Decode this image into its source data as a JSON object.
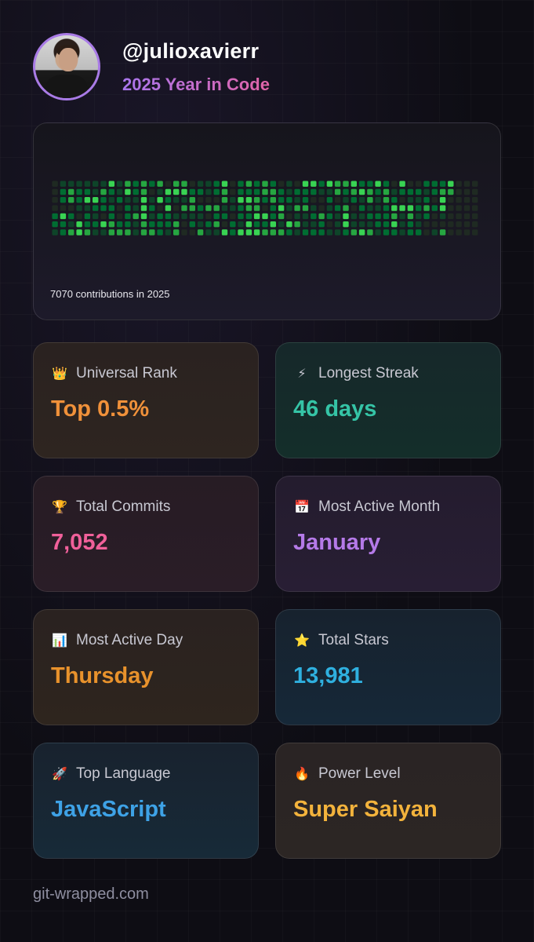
{
  "profile": {
    "username": "@julioxavierr",
    "subtitle": "2025 Year in Code"
  },
  "contributions": {
    "label": "7070 contributions in 2025",
    "colors": [
      "#1f2a22",
      "#0e4429",
      "#006d32",
      "#26a641",
      "#39d353"
    ],
    "weeks": 53
  },
  "stats": [
    {
      "icon": "crown-icon",
      "glyph": "👑",
      "label": "Universal Rank",
      "value": "Top 0.5%",
      "color": "#f0913a"
    },
    {
      "icon": "lightning-icon",
      "glyph": "⚡",
      "label": "Longest Streak",
      "value": "46 days",
      "color": "#35c4a6"
    },
    {
      "icon": "trophy-icon",
      "glyph": "🏆",
      "label": "Total Commits",
      "value": "7,052",
      "color": "#f0609a"
    },
    {
      "icon": "calendar-icon",
      "glyph": "📅",
      "label": "Most Active Month",
      "value": "January",
      "color": "#b57ae8"
    },
    {
      "icon": "bar-chart-icon",
      "glyph": "📊",
      "label": "Most Active Day",
      "value": "Thursday",
      "color": "#e8922c"
    },
    {
      "icon": "star-icon",
      "glyph": "⭐",
      "label": "Total Stars",
      "value": "13,981",
      "color": "#2fb0df"
    },
    {
      "icon": "rocket-icon",
      "glyph": "🚀",
      "label": "Top Language",
      "value": "JavaScript",
      "color": "#3ea2e6"
    },
    {
      "icon": "fire-icon",
      "glyph": "🔥",
      "label": "Power Level",
      "value": "Super Saiyan",
      "color": "#f3b33c"
    }
  ],
  "footer": {
    "site": "git-wrapped.com"
  }
}
